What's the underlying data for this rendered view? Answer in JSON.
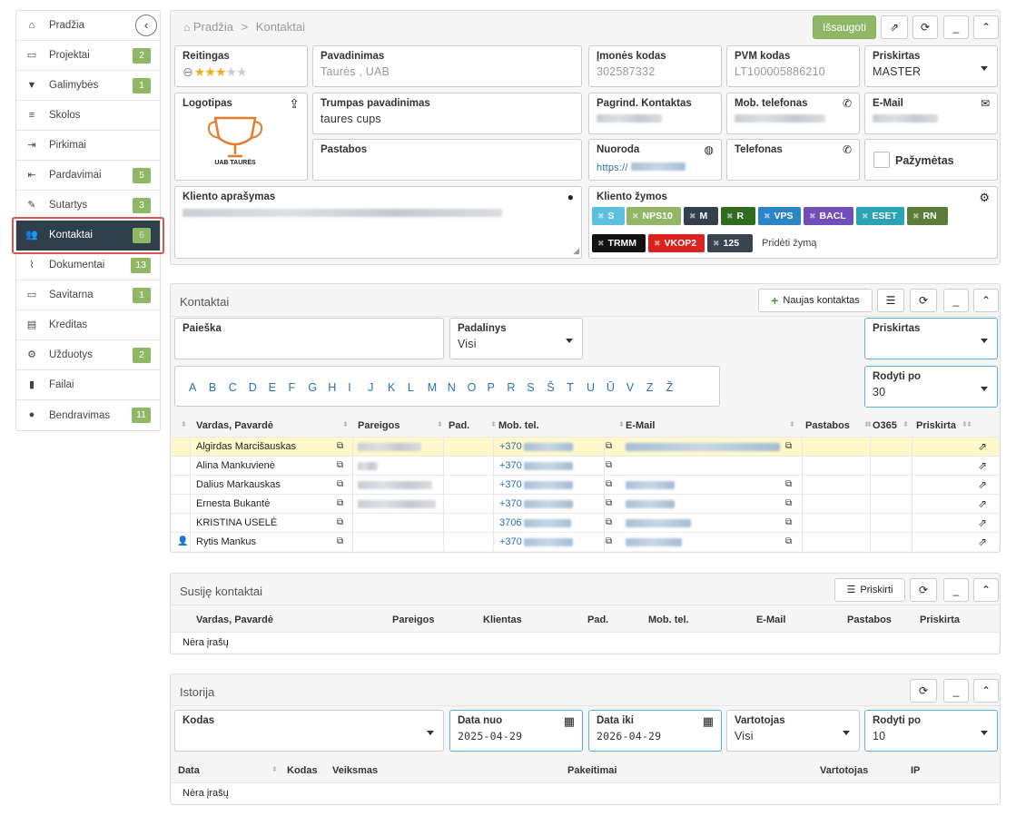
{
  "sidebar": {
    "items": [
      {
        "icon": "home-icon",
        "glyph": "⌂",
        "label": "Pradžia",
        "badge": ""
      },
      {
        "icon": "folder-icon",
        "glyph": "▭",
        "label": "Projektai",
        "badge": "2"
      },
      {
        "icon": "filter-icon",
        "glyph": "▼",
        "label": "Galimybės",
        "badge": "1"
      },
      {
        "icon": "list-icon",
        "glyph": "≡",
        "label": "Skolos",
        "badge": ""
      },
      {
        "icon": "sign-in-icon",
        "glyph": "⇥",
        "label": "Pirkimai",
        "badge": ""
      },
      {
        "icon": "sign-out-icon",
        "glyph": "⇤",
        "label": "Pardavimai",
        "badge": "5"
      },
      {
        "icon": "pencil-icon",
        "glyph": "✎",
        "label": "Sutartys",
        "badge": "3"
      },
      {
        "icon": "users-icon",
        "glyph": "👥",
        "label": "Kontaktai",
        "badge": "6"
      },
      {
        "icon": "paperclip-icon",
        "glyph": "⌇",
        "label": "Dokumentai",
        "badge": "13"
      },
      {
        "icon": "desktop-icon",
        "glyph": "▭",
        "label": "Savitarna",
        "badge": "1"
      },
      {
        "icon": "credit-card-icon",
        "glyph": "▤",
        "label": "Kreditas",
        "badge": ""
      },
      {
        "icon": "cogs-icon",
        "glyph": "⚙",
        "label": "Užduotys",
        "badge": "2"
      },
      {
        "icon": "file-icon",
        "glyph": "▮",
        "label": "Failai",
        "badge": ""
      },
      {
        "icon": "comments-icon",
        "glyph": "●",
        "label": "Bendravimas",
        "badge": "11"
      }
    ],
    "active_index": 7
  },
  "company": {
    "breadcrumb_home": "Pradžia",
    "breadcrumb_sep": ">",
    "breadcrumb_current": "Kontaktai",
    "save_label": "Išsaugoti",
    "rating_label": "Reitingas",
    "rating_value": 3,
    "rating_max": 5,
    "name_label": "Pavadinimas",
    "name_value": "Taurės , UAB",
    "code_label": "Įmonės kodas",
    "code_value": "302587332",
    "vat_label": "PVM kodas",
    "vat_value": "LT100005886210",
    "assigned_label": "Priskirtas",
    "assigned_value": "MASTER",
    "logo_label": "Logotipas",
    "logo_text": "UAB TAURĖS",
    "short_name_label": "Trumpas pavadinimas",
    "short_name_value": "taures cups",
    "main_contact_label": "Pagrind. Kontaktas",
    "mobile_label": "Mob. telefonas",
    "email_label": "E-Mail",
    "notes_label": "Pastabos",
    "link_label": "Nuoroda",
    "link_prefix": "https://",
    "phone_label": "Telefonas",
    "marked_label": "Pažymėtas",
    "description_label": "Kliento aprašymas",
    "tags_label": "Kliento žymos",
    "add_tag_label": "Pridėti žymą",
    "tags": [
      {
        "label": "S",
        "color": "#5bc0de"
      },
      {
        "label": "NPS10",
        "color": "#8fb765"
      },
      {
        "label": "M",
        "color": "#34404c"
      },
      {
        "label": "R",
        "color": "#2e6b1f"
      },
      {
        "label": "VPS",
        "color": "#2a86c8"
      },
      {
        "label": "BACL",
        "color": "#6f4fb8"
      },
      {
        "label": "ESET",
        "color": "#2aa3b5"
      },
      {
        "label": "RN",
        "color": "#5a7d3a"
      },
      {
        "label": "TRMM",
        "color": "#111111"
      },
      {
        "label": "VKOP2",
        "color": "#d9231f"
      },
      {
        "label": "125",
        "color": "#3a4450"
      }
    ]
  },
  "contacts": {
    "title": "Kontaktai",
    "new_label": "Naujas kontaktas",
    "search_label": "Paieška",
    "unit_label": "Padalinys",
    "unit_value": "Visi",
    "assigned_label": "Priskirtas",
    "show_label": "Rodyti po",
    "show_value": "30",
    "letters": [
      "A",
      "B",
      "C",
      "D",
      "E",
      "F",
      "G",
      "H",
      "I",
      "J",
      "K",
      "L",
      "M",
      "N",
      "O",
      "P",
      "R",
      "S",
      "Š",
      "T",
      "U",
      "Ū",
      "V",
      "Z",
      "Ž"
    ],
    "columns": [
      "Vardas, Pavardė",
      "Pareigos",
      "Pad.",
      "Mob. tel.",
      "E-Mail",
      "Pastabos",
      "O365",
      "Priskirta"
    ],
    "rows": [
      {
        "name": "Algirdas Marcišauskas",
        "phone": "+370",
        "highlight": true,
        "person_icon": false
      },
      {
        "name": "Alina Mankuvienė",
        "phone": "+370",
        "highlight": false,
        "person_icon": false
      },
      {
        "name": "Dalius Markauskas",
        "phone": "+370",
        "highlight": false,
        "person_icon": false
      },
      {
        "name": "Ernesta Bukantė",
        "phone": "+370",
        "highlight": false,
        "person_icon": false
      },
      {
        "name": "KRISTINA USELĖ",
        "phone": "3706",
        "highlight": false,
        "person_icon": false
      },
      {
        "name": "Rytis Mankus",
        "phone": "+370",
        "highlight": false,
        "person_icon": true
      }
    ]
  },
  "related": {
    "title": "Susiję kontaktai",
    "assign_label": "Priskirti",
    "columns": [
      "Vardas, Pavardė",
      "Pareigos",
      "Klientas",
      "Pad.",
      "Mob. tel.",
      "E-Mail",
      "Pastabos",
      "Priskirta"
    ],
    "empty": "Nėra įrašų"
  },
  "history": {
    "title": "Istorija",
    "code_label": "Kodas",
    "date_from_label": "Data nuo",
    "date_from_value": "2025-04-29",
    "date_to_label": "Data iki",
    "date_to_value": "2026-04-29",
    "user_label": "Vartotojas",
    "user_value": "Visi",
    "show_label": "Rodyti po",
    "show_value": "10",
    "columns": [
      "Data",
      "Kodas",
      "Veiksmas",
      "Pakeitimai",
      "Vartotojas",
      "IP"
    ],
    "empty": "Nėra įrašų"
  }
}
